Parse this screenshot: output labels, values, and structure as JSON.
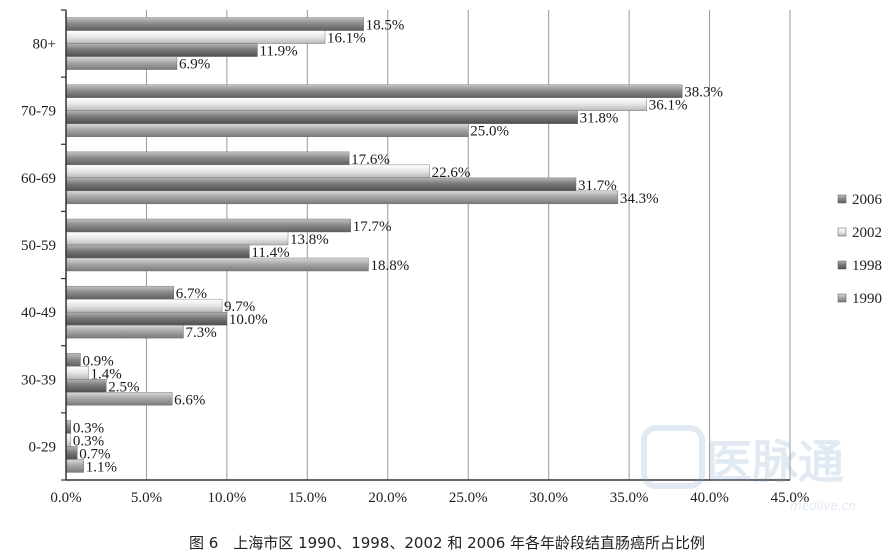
{
  "chart_data": {
    "type": "bar",
    "orientation": "horizontal",
    "categories": [
      "80+",
      "70-79",
      "60-69",
      "50-59",
      "40-49",
      "30-39",
      "0-29"
    ],
    "series": [
      {
        "name": "2006",
        "color": "#8c8c8c",
        "values": [
          18.5,
          38.3,
          17.6,
          17.7,
          6.7,
          0.9,
          0.3
        ]
      },
      {
        "name": "2002",
        "color": "#d9d9d9",
        "values": [
          16.1,
          36.1,
          22.6,
          13.8,
          9.7,
          1.4,
          0.3
        ]
      },
      {
        "name": "1998",
        "color": "#7d7d7d",
        "values": [
          11.9,
          31.8,
          31.7,
          11.4,
          10.0,
          2.5,
          0.7
        ]
      },
      {
        "name": "1990",
        "color": "#a6a6a6",
        "values": [
          6.9,
          25.0,
          34.3,
          18.8,
          7.3,
          6.6,
          1.1
        ]
      }
    ],
    "value_labels": [
      [
        "18.5%",
        "16.1%",
        "11.9%",
        "6.9%"
      ],
      [
        "38.3%",
        "36.1%",
        "31.8%",
        "25.0%"
      ],
      [
        "17.6%",
        "22.6%",
        "31.7%",
        "34.3%"
      ],
      [
        "17.7%",
        "13.8%",
        "11.4%",
        "18.8%"
      ],
      [
        "6.7%",
        "9.7%",
        "10.0%",
        "7.3%"
      ],
      [
        "0.9%",
        "1.4%",
        "2.5%",
        "6.6%"
      ],
      [
        "0.3%",
        "0.3%",
        "0.7%",
        "1.1%"
      ]
    ],
    "xlim": [
      0,
      45
    ],
    "x_ticks": [
      "0.0%",
      "5.0%",
      "10.0%",
      "15.0%",
      "20.0%",
      "25.0%",
      "30.0%",
      "35.0%",
      "40.0%",
      "45.0%"
    ],
    "legend_labels": [
      "2006",
      "2002",
      "1998",
      "1990"
    ],
    "legend_position": "right",
    "grid": true
  },
  "caption": "图 6　上海市区 1990、1998、2002 和 2006 年各年龄段结直肠癌所占比例",
  "watermark": {
    "text": "医脉通",
    "url": "medlive.cn"
  }
}
